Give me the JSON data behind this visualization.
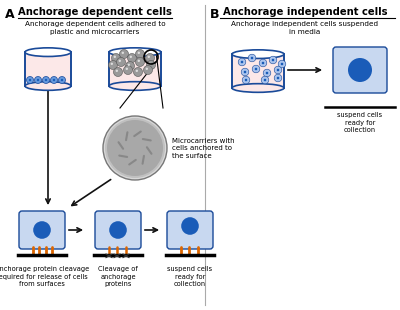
{
  "title_A": "Anchorage dependent cells",
  "title_B": "Anchorage independent cells",
  "label_A": "A",
  "label_B": "B",
  "text_top_A": "Anchorage dependent cells adhered to\nplastic and microcarriers",
  "text_top_B": "Anchorage independent cells suspended\nin media",
  "text_microcarrier": "Microcarriers with\ncells anchored to\nthe surface",
  "text_bottom_left": "Anchorage protein cleavage\nrequired for release of cells\nfrom surfaces",
  "text_bottom_mid": "Cleavage of\nanchorage\nproteins",
  "text_bottom_right": "suspend cells\nready for\ncollection",
  "text_right_B": "suspend cells\nready for\ncollection",
  "bg_color": "#ffffff",
  "beaker_fill": "#fce8e8",
  "beaker_stroke": "#1a4a99",
  "cell_blue_dark": "#1a5cb8",
  "cell_blue_light": "#6699dd",
  "box_fill_light": "#c8d8f0",
  "box_fill_dark": "#a8c0e8",
  "microcarrier_light": "#c8c8c8",
  "microcarrier_dark": "#888888",
  "orange_color": "#dd6600",
  "text_color": "#111111",
  "arrow_color": "#111111"
}
